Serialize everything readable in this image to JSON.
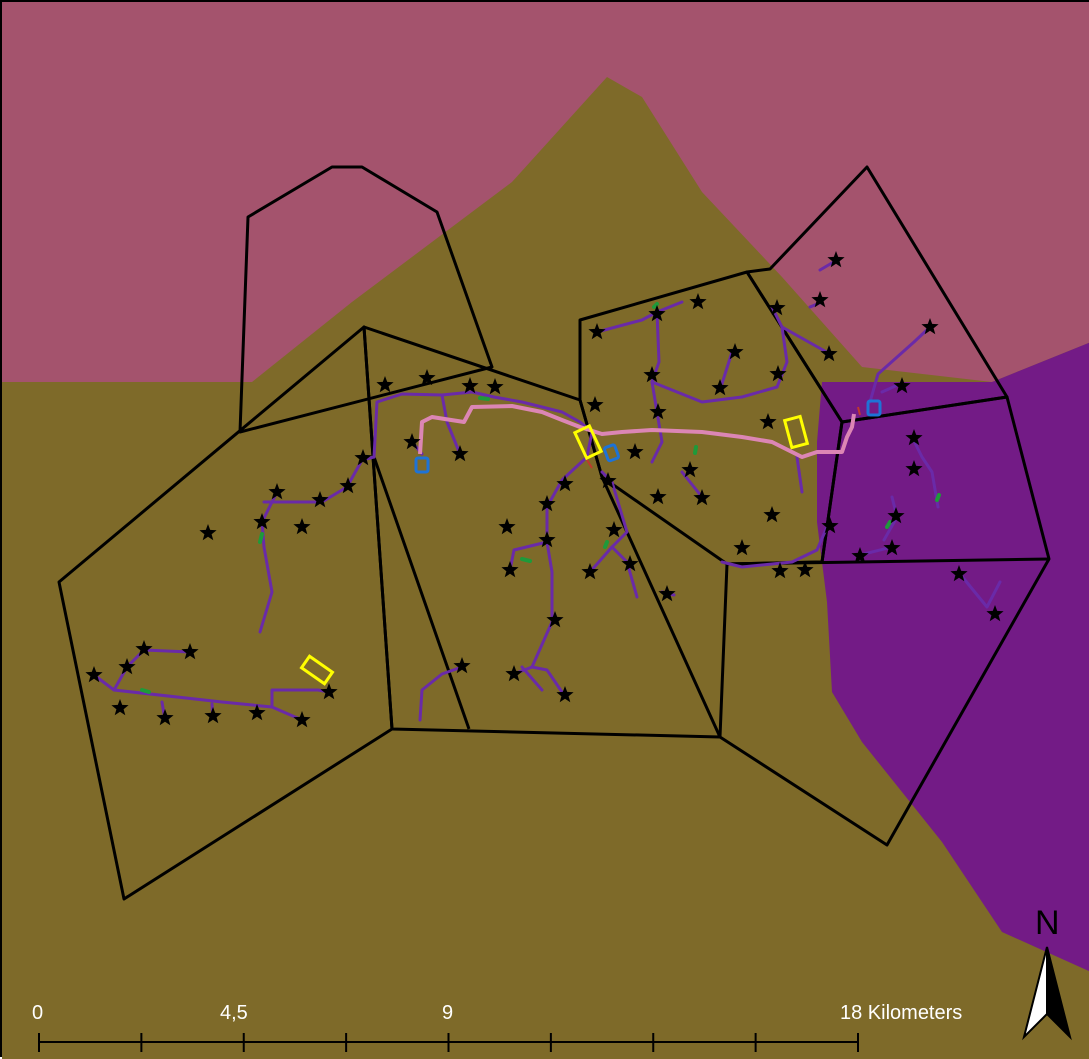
{
  "map": {
    "colors": {
      "region_pink": "#a4536d",
      "region_olive": "#7e6a29",
      "region_purple": "#731b86",
      "boundary": "#000000",
      "network_line": "#6a2aa8",
      "main_line": "#dc86b4",
      "site_marker": "#ffff00",
      "station_marker": "#1e73d6",
      "small_segment": "#1e9a3a"
    },
    "feature_types": [
      "region-polygon",
      "district-boundary",
      "network-line",
      "main-pipeline",
      "star-point",
      "site-rectangle",
      "station-marker"
    ]
  },
  "scale_bar": {
    "labels": [
      "0",
      "4,5",
      "9",
      "18 Kilometers"
    ]
  },
  "north_arrow": {
    "label": "N",
    "icon": "north-arrow-icon"
  }
}
